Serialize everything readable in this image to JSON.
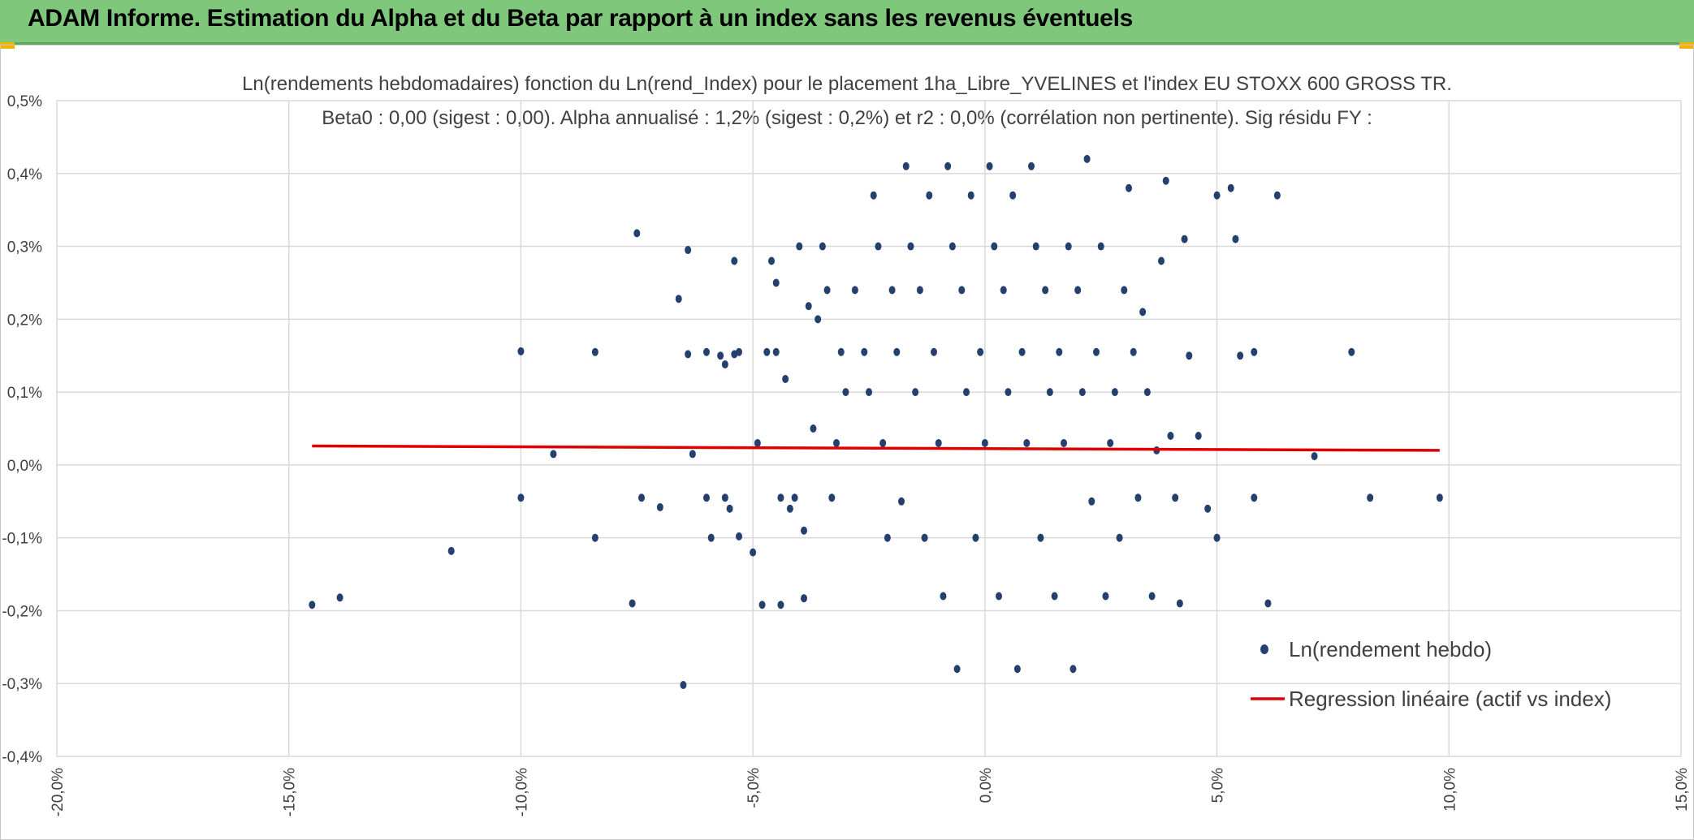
{
  "header": {
    "title": "ADAM Informe. Estimation du Alpha et du Beta par rapport à un index sans les revenus éventuels"
  },
  "colors": {
    "header_bg": "#7ec77b",
    "points": "#24406f",
    "regression": "#e00000",
    "grid": "#d9d9d9"
  },
  "chart_data": {
    "type": "scatter",
    "title": "Ln(rendements hebdomadaires) fonction du Ln(rend_Index) pour le placement 1ha_Libre_YVELINES et l'index EU STOXX 600 GROSS TR.",
    "subtitle": "Beta0 : 0,00 (sigest : 0,00). Alpha annualisé : 1,2% (sigest : 0,2%) et r2 : 0,0% (corrélation non pertinente). Sig résidu FY :",
    "xlabel": "",
    "ylabel": "",
    "xlim": [
      -20,
      15
    ],
    "ylim": [
      -0.4,
      0.5
    ],
    "x_ticks": [
      -20,
      -15,
      -10,
      -5,
      0,
      5,
      10,
      15
    ],
    "y_ticks": [
      -0.4,
      -0.3,
      -0.2,
      -0.1,
      0.0,
      0.1,
      0.2,
      0.3,
      0.4,
      0.5
    ],
    "x_tick_labels": [
      "-20,0%",
      "-15,0%",
      "-10,0%",
      "-5,0%",
      "0,0%",
      "5,0%",
      "10,0%",
      "15,0%"
    ],
    "y_tick_labels": [
      "-0,4%",
      "-0,3%",
      "-0,2%",
      "-0,1%",
      "0,0%",
      "0,1%",
      "0,2%",
      "0,3%",
      "0,4%",
      "0,5%"
    ],
    "grid": true,
    "legend_position": "bottom-right",
    "series": [
      {
        "name": "Ln(rendement hebdo)",
        "kind": "scatter",
        "color": "#24406f",
        "points": [
          [
            -14.5,
            -0.192
          ],
          [
            -13.9,
            -0.182
          ],
          [
            -11.5,
            -0.118
          ],
          [
            -10.0,
            0.156
          ],
          [
            -10.0,
            -0.045
          ],
          [
            -9.3,
            0.015
          ],
          [
            -8.4,
            0.155
          ],
          [
            -8.4,
            -0.1
          ],
          [
            -7.5,
            0.318
          ],
          [
            -7.4,
            -0.045
          ],
          [
            -7.6,
            -0.19
          ],
          [
            -7.0,
            -0.058
          ],
          [
            -6.6,
            0.228
          ],
          [
            -6.4,
            0.295
          ],
          [
            -6.4,
            0.152
          ],
          [
            -6.5,
            -0.302
          ],
          [
            -6.3,
            0.015
          ],
          [
            -6.0,
            0.155
          ],
          [
            -6.0,
            -0.045
          ],
          [
            -5.9,
            -0.1
          ],
          [
            -5.7,
            0.15
          ],
          [
            -5.6,
            0.138
          ],
          [
            -5.6,
            -0.045
          ],
          [
            -5.5,
            -0.06
          ],
          [
            -5.4,
            0.28
          ],
          [
            -5.4,
            0.152
          ],
          [
            -5.3,
            0.155
          ],
          [
            -5.3,
            -0.098
          ],
          [
            -5.0,
            -0.12
          ],
          [
            -4.9,
            0.03
          ],
          [
            -4.8,
            -0.192
          ],
          [
            -4.7,
            0.155
          ],
          [
            -4.6,
            0.28
          ],
          [
            -4.5,
            0.25
          ],
          [
            -4.5,
            0.155
          ],
          [
            -4.4,
            -0.045
          ],
          [
            -4.4,
            -0.192
          ],
          [
            -4.3,
            0.118
          ],
          [
            -4.2,
            -0.06
          ],
          [
            -4.1,
            -0.045
          ],
          [
            -4.0,
            0.3
          ],
          [
            -3.9,
            -0.09
          ],
          [
            -3.9,
            -0.183
          ],
          [
            -3.8,
            0.218
          ],
          [
            -3.7,
            0.05
          ],
          [
            -3.6,
            0.2
          ],
          [
            -3.5,
            0.3
          ],
          [
            -3.4,
            0.24
          ],
          [
            -3.3,
            -0.045
          ],
          [
            -3.2,
            0.03
          ],
          [
            -3.1,
            0.155
          ],
          [
            -3.0,
            0.1
          ],
          [
            -2.8,
            0.24
          ],
          [
            -2.6,
            0.155
          ],
          [
            -2.5,
            0.1
          ],
          [
            -2.4,
            0.37
          ],
          [
            -2.3,
            0.3
          ],
          [
            -2.2,
            0.03
          ],
          [
            -2.1,
            -0.1
          ],
          [
            -2.0,
            0.24
          ],
          [
            -1.9,
            0.155
          ],
          [
            -1.8,
            -0.05
          ],
          [
            -1.7,
            0.41
          ],
          [
            -1.6,
            0.3
          ],
          [
            -1.5,
            0.1
          ],
          [
            -1.4,
            0.24
          ],
          [
            -1.3,
            -0.1
          ],
          [
            -1.2,
            0.37
          ],
          [
            -1.1,
            0.155
          ],
          [
            -1.0,
            0.03
          ],
          [
            -0.9,
            -0.18
          ],
          [
            -0.8,
            0.41
          ],
          [
            -0.7,
            0.3
          ],
          [
            -0.6,
            -0.28
          ],
          [
            -0.5,
            0.24
          ],
          [
            -0.4,
            0.1
          ],
          [
            -0.3,
            0.37
          ],
          [
            -0.2,
            -0.1
          ],
          [
            -0.1,
            0.155
          ],
          [
            0.0,
            0.03
          ],
          [
            0.1,
            0.41
          ],
          [
            0.2,
            0.3
          ],
          [
            0.3,
            -0.18
          ],
          [
            0.4,
            0.24
          ],
          [
            0.5,
            0.1
          ],
          [
            0.6,
            0.37
          ],
          [
            0.7,
            -0.28
          ],
          [
            0.8,
            0.155
          ],
          [
            0.9,
            0.03
          ],
          [
            1.0,
            0.41
          ],
          [
            1.1,
            0.3
          ],
          [
            1.2,
            -0.1
          ],
          [
            1.3,
            0.24
          ],
          [
            1.4,
            0.1
          ],
          [
            1.5,
            -0.18
          ],
          [
            1.6,
            0.155
          ],
          [
            1.7,
            0.03
          ],
          [
            1.8,
            0.3
          ],
          [
            1.9,
            -0.28
          ],
          [
            2.0,
            0.24
          ],
          [
            2.1,
            0.1
          ],
          [
            2.2,
            0.42
          ],
          [
            2.3,
            -0.05
          ],
          [
            2.4,
            0.155
          ],
          [
            2.5,
            0.3
          ],
          [
            2.6,
            -0.18
          ],
          [
            2.7,
            0.03
          ],
          [
            2.8,
            0.1
          ],
          [
            2.9,
            -0.1
          ],
          [
            3.0,
            0.24
          ],
          [
            3.1,
            0.38
          ],
          [
            3.2,
            0.155
          ],
          [
            3.3,
            -0.045
          ],
          [
            3.4,
            0.21
          ],
          [
            3.5,
            0.1
          ],
          [
            3.6,
            -0.18
          ],
          [
            3.7,
            0.02
          ],
          [
            3.8,
            0.28
          ],
          [
            3.9,
            0.39
          ],
          [
            4.0,
            0.04
          ],
          [
            4.1,
            -0.045
          ],
          [
            4.2,
            -0.19
          ],
          [
            4.3,
            0.31
          ],
          [
            4.4,
            0.15
          ],
          [
            4.6,
            0.04
          ],
          [
            4.8,
            -0.06
          ],
          [
            5.0,
            0.37
          ],
          [
            5.0,
            -0.1
          ],
          [
            5.3,
            0.38
          ],
          [
            5.4,
            0.31
          ],
          [
            5.5,
            0.15
          ],
          [
            5.8,
            0.155
          ],
          [
            5.8,
            -0.045
          ],
          [
            6.1,
            -0.19
          ],
          [
            6.3,
            0.37
          ],
          [
            7.1,
            0.012
          ],
          [
            7.9,
            0.155
          ],
          [
            8.3,
            -0.045
          ],
          [
            9.8,
            -0.045
          ]
        ]
      },
      {
        "name": "Regression linéaire (actif vs index)",
        "kind": "line",
        "color": "#e00000",
        "points": [
          [
            -14.5,
            0.026
          ],
          [
            9.8,
            0.02
          ]
        ]
      }
    ]
  }
}
